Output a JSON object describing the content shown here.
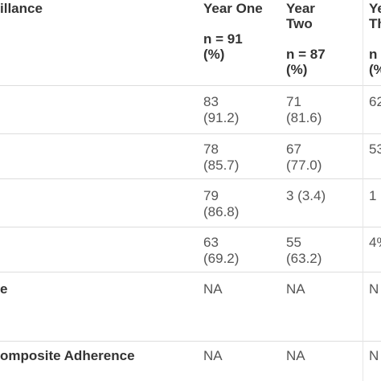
{
  "header": {
    "col0": "illance",
    "col1_title": "Year One",
    "col1_n": "n = 91",
    "col1_pct": "(%)",
    "col2_title_1": "Year",
    "col2_title_2": "Two",
    "col2_n": "n = 87",
    "col2_pct": "(%)",
    "col3_title_1": "Ye",
    "col3_title_2": "Th",
    "col3_n": "n",
    "col3_pct": "(%"
  },
  "rows": [
    {
      "label": "",
      "c1a": "83",
      "c1b": "(91.2)",
      "c2a": "71",
      "c2b": "(81.6)",
      "c3": "62"
    },
    {
      "label": "",
      "c1a": "78",
      "c1b": "(85.7)",
      "c2a": "67",
      "c2b": "(77.0)",
      "c3": "53"
    },
    {
      "label": "",
      "c1a": "79",
      "c1b": "(86.8)",
      "c2a": "3 (3.4)",
      "c2b": "",
      "c3": "1"
    },
    {
      "label": "",
      "c1a": "63",
      "c1b": "(69.2)",
      "c2a": "55",
      "c2b": "(63.2)",
      "c3": "4%"
    },
    {
      "label": "e",
      "c1a": "NA",
      "c1b": "",
      "c2a": "NA",
      "c2b": "",
      "c3": "N"
    },
    {
      "label": "omposite Adherence",
      "c1a": "NA",
      "c1b": "",
      "c2a": "NA",
      "c2b": "",
      "c3": "N"
    }
  ]
}
